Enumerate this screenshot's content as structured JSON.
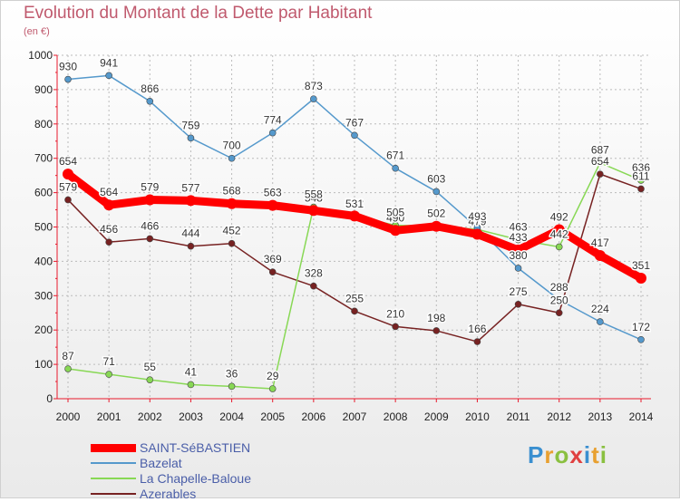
{
  "title": "Evolution du Montant de la Dette par Habitant",
  "subtitle": "(en €)",
  "logo_text": "Proxiti",
  "colors": {
    "accent": "#c05a6e",
    "axis": "#e8192c",
    "grid": "#bbbbbb"
  },
  "chart_data": {
    "type": "line",
    "title": "Evolution du Montant de la Dette par Habitant",
    "subtitle": "(en €)",
    "x": [
      "2000",
      "2001",
      "2002",
      "2003",
      "2004",
      "2005",
      "2006",
      "2007",
      "2008",
      "2009",
      "2010",
      "2011",
      "2012",
      "2013",
      "2014"
    ],
    "y_ticks": [
      "0",
      "100",
      "200",
      "300",
      "400",
      "500",
      "600",
      "700",
      "800",
      "900",
      "1000"
    ],
    "ylim": [
      0,
      1000
    ],
    "grid": true,
    "legend_position": "bottom-left",
    "series": [
      {
        "name": "SAINT-SéBASTIEN",
        "color": "#ff0000",
        "values": [
          654,
          564,
          579,
          577,
          568,
          563,
          548,
          532,
          490,
          502,
          479,
          433,
          492,
          417,
          351
        ]
      },
      {
        "name": "Bazelat",
        "color": "#5599cc",
        "values": [
          930,
          941,
          866,
          759,
          700,
          774,
          873,
          767,
          671,
          603,
          498,
          380,
          288,
          224,
          172
        ]
      },
      {
        "name": "La Chapelle-Baloue",
        "color": "#88d855",
        "values": [
          87,
          71,
          55,
          41,
          36,
          29,
          558,
          531,
          505,
          502,
          493,
          463,
          442,
          687,
          636
        ]
      },
      {
        "name": "Azerables",
        "color": "#772222",
        "values": [
          579,
          456,
          466,
          444,
          452,
          369,
          328,
          255,
          210,
          198,
          166,
          275,
          250,
          654,
          611
        ]
      }
    ]
  }
}
